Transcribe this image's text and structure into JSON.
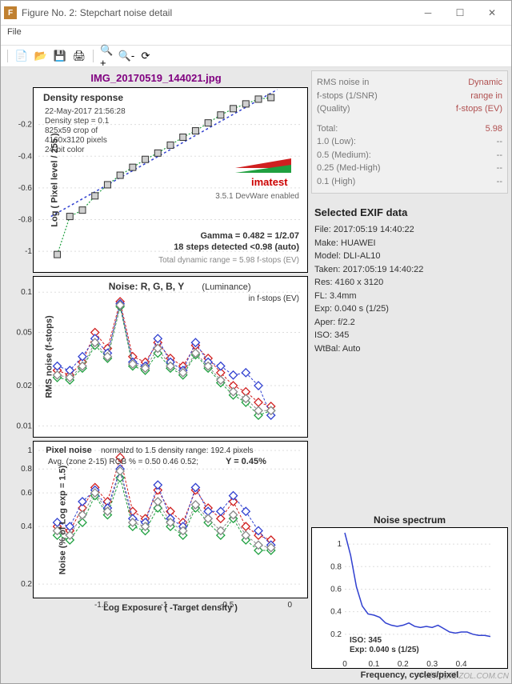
{
  "window": {
    "title": "Figure No. 2: Stepchart noise detail"
  },
  "menu": {
    "file": "File"
  },
  "main_title": "IMG_20170519_144021.jpg",
  "chart1": {
    "type": "line+scatter",
    "title": "Density response",
    "info_lines": [
      "22-May-2017 21:56:28",
      "Density step = 0.1",
      "825x59 crop of",
      "4160x3120 pixels",
      "24-bit color"
    ],
    "brand": "imatest",
    "version": "3.5.1  DevWare enabled",
    "gamma": "Gamma = 0.482 = 1/2.07",
    "steps": "18 steps detected <0.98 (auto)",
    "dyn_range": "Total dynamic range = 5.98 f-stops (EV)",
    "xlim": [
      -2,
      0.1
    ],
    "ylim": [
      -1.1,
      0
    ],
    "xticks": [
      -1.5,
      -1,
      -0.5,
      0
    ],
    "yticks": [
      -1,
      -0.8,
      -0.6,
      -0.4,
      -0.2
    ],
    "ylabel": "Log ( Pixel level / 255 )",
    "xlabel": "Log Exposure ( -Target density )",
    "data_pts": [
      [
        -1.85,
        -1.02
      ],
      [
        -1.75,
        -0.78
      ],
      [
        -1.65,
        -0.74
      ],
      [
        -1.55,
        -0.65
      ],
      [
        -1.45,
        -0.58
      ],
      [
        -1.35,
        -0.52
      ],
      [
        -1.25,
        -0.47
      ],
      [
        -1.15,
        -0.42
      ],
      [
        -1.05,
        -0.38
      ],
      [
        -0.95,
        -0.33
      ],
      [
        -0.85,
        -0.28
      ],
      [
        -0.75,
        -0.24
      ],
      [
        -0.65,
        -0.19
      ],
      [
        -0.55,
        -0.14
      ],
      [
        -0.45,
        -0.1
      ],
      [
        -0.35,
        -0.07
      ],
      [
        -0.25,
        -0.04
      ],
      [
        -0.15,
        -0.03
      ]
    ],
    "fit_blue": [
      [
        -1.9,
        -0.78
      ],
      [
        -0.1,
        0.02
      ]
    ],
    "colors": {
      "marker_fill": "#d0d0d0",
      "marker_stroke": "#333",
      "fit": "#3040d0",
      "fit2": "#20a040"
    }
  },
  "chart2": {
    "type": "scatter-line",
    "title": "Noise: R, G, B, Y",
    "title_sub": "(Luminance)",
    "sub2": "in f-stops (EV)",
    "ylabel": "RMS noise (f-stops)",
    "xlim": [
      -2,
      0.1
    ],
    "ylim": [
      0.009,
      0.12
    ],
    "yscale": "log",
    "yticks": [
      0.01,
      0.02,
      0.05,
      0.1
    ],
    "series": [
      {
        "name": "R",
        "color": "#d02020",
        "pts": [
          [
            -1.85,
            0.026
          ],
          [
            -1.75,
            0.024
          ],
          [
            -1.65,
            0.03
          ],
          [
            -1.55,
            0.05
          ],
          [
            -1.45,
            0.038
          ],
          [
            -1.35,
            0.085
          ],
          [
            -1.25,
            0.033
          ],
          [
            -1.15,
            0.03
          ],
          [
            -1.05,
            0.042
          ],
          [
            -0.95,
            0.032
          ],
          [
            -0.85,
            0.028
          ],
          [
            -0.75,
            0.04
          ],
          [
            -0.65,
            0.032
          ],
          [
            -0.55,
            0.025
          ],
          [
            -0.45,
            0.02
          ],
          [
            -0.35,
            0.018
          ],
          [
            -0.25,
            0.015
          ],
          [
            -0.15,
            0.014
          ]
        ]
      },
      {
        "name": "G",
        "color": "#20a040",
        "pts": [
          [
            -1.85,
            0.023
          ],
          [
            -1.75,
            0.022
          ],
          [
            -1.65,
            0.027
          ],
          [
            -1.55,
            0.04
          ],
          [
            -1.45,
            0.032
          ],
          [
            -1.35,
            0.078
          ],
          [
            -1.25,
            0.028
          ],
          [
            -1.15,
            0.026
          ],
          [
            -1.05,
            0.035
          ],
          [
            -0.95,
            0.027
          ],
          [
            -0.85,
            0.024
          ],
          [
            -0.75,
            0.034
          ],
          [
            -0.65,
            0.027
          ],
          [
            -0.55,
            0.021
          ],
          [
            -0.45,
            0.017
          ],
          [
            -0.35,
            0.015
          ],
          [
            -0.25,
            0.012
          ],
          [
            -0.15,
            0.013
          ]
        ]
      },
      {
        "name": "B",
        "color": "#3040d0",
        "pts": [
          [
            -1.85,
            0.028
          ],
          [
            -1.75,
            0.026
          ],
          [
            -1.65,
            0.033
          ],
          [
            -1.55,
            0.045
          ],
          [
            -1.45,
            0.035
          ],
          [
            -1.35,
            0.082
          ],
          [
            -1.25,
            0.03
          ],
          [
            -1.15,
            0.028
          ],
          [
            -1.05,
            0.045
          ],
          [
            -0.95,
            0.03
          ],
          [
            -0.85,
            0.026
          ],
          [
            -0.75,
            0.042
          ],
          [
            -0.65,
            0.03
          ],
          [
            -0.55,
            0.028
          ],
          [
            -0.45,
            0.024
          ],
          [
            -0.35,
            0.025
          ],
          [
            -0.25,
            0.02
          ],
          [
            -0.15,
            0.012
          ]
        ]
      },
      {
        "name": "Y",
        "color": "#888888",
        "pts": [
          [
            -1.85,
            0.024
          ],
          [
            -1.75,
            0.023
          ],
          [
            -1.65,
            0.028
          ],
          [
            -1.55,
            0.042
          ],
          [
            -1.45,
            0.033
          ],
          [
            -1.35,
            0.08
          ],
          [
            -1.25,
            0.029
          ],
          [
            -1.15,
            0.027
          ],
          [
            -1.05,
            0.038
          ],
          [
            -0.95,
            0.028
          ],
          [
            -0.85,
            0.025
          ],
          [
            -0.75,
            0.035
          ],
          [
            -0.65,
            0.028
          ],
          [
            -0.55,
            0.022
          ],
          [
            -0.45,
            0.018
          ],
          [
            -0.35,
            0.016
          ],
          [
            -0.25,
            0.013
          ],
          [
            -0.15,
            0.013
          ]
        ]
      }
    ]
  },
  "chart3": {
    "type": "scatter-line",
    "title": "Pixel noise",
    "title_sub": "normalzd to 1.5 density range: 192.4 pixels",
    "avg_line": "Avg. (zone 2-15) RGB % = 0.50  0.46  0.52;   ",
    "avg_bold": "Y = 0.45%",
    "ylabel": "Noise (% of Log exp = 1.5)",
    "xlim": [
      -2,
      0.1
    ],
    "ylim": [
      0.18,
      1.05
    ],
    "yscale": "log",
    "yticks": [
      0.2,
      0.4,
      0.6,
      0.8,
      1
    ],
    "series": [
      {
        "name": "R",
        "color": "#d02020",
        "pts": [
          [
            -1.85,
            0.4
          ],
          [
            -1.75,
            0.38
          ],
          [
            -1.65,
            0.5
          ],
          [
            -1.55,
            0.64
          ],
          [
            -1.45,
            0.54
          ],
          [
            -1.35,
            0.92
          ],
          [
            -1.25,
            0.48
          ],
          [
            -1.15,
            0.44
          ],
          [
            -1.05,
            0.62
          ],
          [
            -0.95,
            0.48
          ],
          [
            -0.85,
            0.42
          ],
          [
            -0.75,
            0.62
          ],
          [
            -0.65,
            0.5
          ],
          [
            -0.55,
            0.44
          ],
          [
            -0.45,
            0.54
          ],
          [
            -0.35,
            0.4
          ],
          [
            -0.25,
            0.36
          ],
          [
            -0.15,
            0.34
          ]
        ]
      },
      {
        "name": "G",
        "color": "#20a040",
        "pts": [
          [
            -1.85,
            0.36
          ],
          [
            -1.75,
            0.34
          ],
          [
            -1.65,
            0.42
          ],
          [
            -1.55,
            0.58
          ],
          [
            -1.45,
            0.46
          ],
          [
            -1.35,
            0.72
          ],
          [
            -1.25,
            0.4
          ],
          [
            -1.15,
            0.38
          ],
          [
            -1.05,
            0.5
          ],
          [
            -0.95,
            0.4
          ],
          [
            -0.85,
            0.36
          ],
          [
            -0.75,
            0.5
          ],
          [
            -0.65,
            0.42
          ],
          [
            -0.55,
            0.36
          ],
          [
            -0.45,
            0.44
          ],
          [
            -0.35,
            0.34
          ],
          [
            -0.25,
            0.3
          ],
          [
            -0.15,
            0.3
          ]
        ]
      },
      {
        "name": "B",
        "color": "#3040d0",
        "pts": [
          [
            -1.85,
            0.42
          ],
          [
            -1.75,
            0.4
          ],
          [
            -1.65,
            0.54
          ],
          [
            -1.55,
            0.62
          ],
          [
            -1.45,
            0.5
          ],
          [
            -1.35,
            0.8
          ],
          [
            -1.25,
            0.44
          ],
          [
            -1.15,
            0.42
          ],
          [
            -1.05,
            0.66
          ],
          [
            -0.95,
            0.44
          ],
          [
            -0.85,
            0.4
          ],
          [
            -0.75,
            0.64
          ],
          [
            -0.65,
            0.48
          ],
          [
            -0.55,
            0.48
          ],
          [
            -0.45,
            0.58
          ],
          [
            -0.35,
            0.48
          ],
          [
            -0.25,
            0.38
          ],
          [
            -0.15,
            0.32
          ]
        ]
      },
      {
        "name": "Y",
        "color": "#888888",
        "pts": [
          [
            -1.85,
            0.38
          ],
          [
            -1.75,
            0.36
          ],
          [
            -1.65,
            0.46
          ],
          [
            -1.55,
            0.6
          ],
          [
            -1.45,
            0.48
          ],
          [
            -1.35,
            0.78
          ],
          [
            -1.25,
            0.42
          ],
          [
            -1.15,
            0.4
          ],
          [
            -1.05,
            0.54
          ],
          [
            -0.95,
            0.42
          ],
          [
            -0.85,
            0.38
          ],
          [
            -0.75,
            0.52
          ],
          [
            -0.65,
            0.44
          ],
          [
            -0.55,
            0.38
          ],
          [
            -0.45,
            0.46
          ],
          [
            -0.35,
            0.36
          ],
          [
            -0.25,
            0.32
          ],
          [
            -0.15,
            0.31
          ]
        ]
      }
    ]
  },
  "chart4": {
    "type": "line",
    "title": "Noise spectrum",
    "xlim": [
      0,
      0.5
    ],
    "ylim": [
      0,
      1.1
    ],
    "xticks": [
      0,
      0.1,
      0.2,
      0.3,
      0.4
    ],
    "yticks": [
      0.2,
      0.4,
      0.6,
      0.8,
      1
    ],
    "xlabel": "Frequency, cycles/pixel",
    "iso_label": "ISO:   345",
    "exp_label": "Exp:  0.040 s  (1/25)",
    "color": "#3040d0",
    "pts": [
      [
        0.0,
        1.1
      ],
      [
        0.02,
        0.9
      ],
      [
        0.04,
        0.62
      ],
      [
        0.06,
        0.45
      ],
      [
        0.08,
        0.38
      ],
      [
        0.1,
        0.37
      ],
      [
        0.12,
        0.35
      ],
      [
        0.14,
        0.3
      ],
      [
        0.16,
        0.28
      ],
      [
        0.18,
        0.27
      ],
      [
        0.2,
        0.28
      ],
      [
        0.22,
        0.3
      ],
      [
        0.24,
        0.27
      ],
      [
        0.26,
        0.26
      ],
      [
        0.28,
        0.27
      ],
      [
        0.3,
        0.26
      ],
      [
        0.32,
        0.28
      ],
      [
        0.34,
        0.25
      ],
      [
        0.36,
        0.22
      ],
      [
        0.38,
        0.21
      ],
      [
        0.4,
        0.22
      ],
      [
        0.42,
        0.22
      ],
      [
        0.44,
        0.2
      ],
      [
        0.46,
        0.19
      ],
      [
        0.48,
        0.19
      ],
      [
        0.5,
        0.18
      ]
    ]
  },
  "info_panel": {
    "h1": "RMS noise in",
    "h2": "f-stops (1/SNR)",
    "h3": "(Quality)",
    "r1": "Dynamic",
    "r2": "range in",
    "r3": "f-stops (EV)",
    "rows": [
      {
        "l": "Total:",
        "v": "5.98"
      },
      {
        "l": "1.0   (Low):",
        "v": "--"
      },
      {
        "l": "0.5   (Medium):",
        "v": "--"
      },
      {
        "l": "0.25 (Med-High)",
        "v": "--"
      },
      {
        "l": "0.1   (High)",
        "v": "--"
      }
    ]
  },
  "exif": {
    "title": "Selected EXIF data",
    "rows": [
      "File:   2017:05:19 14:40:22",
      "Make: HUAWEI",
      "Model: DLI-AL10",
      "Taken: 2017:05:19 14:40:22",
      "Res:   4160 x 3120",
      "FL:   3.4mm",
      "Exp:   0.040 s  (1/25)",
      "Aper:  f/2.2",
      "ISO:   345",
      "WtBal: Auto"
    ]
  },
  "watermark": "中关村在线 ZOL.COM.CN"
}
